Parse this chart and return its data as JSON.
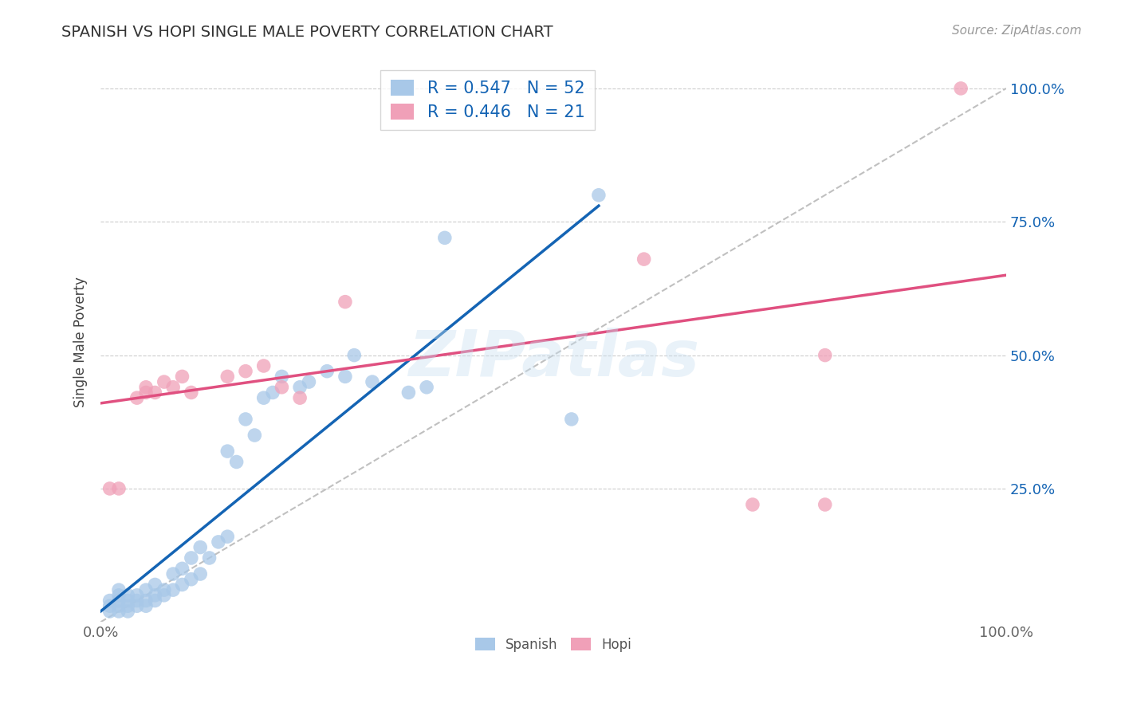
{
  "title": "SPANISH VS HOPI SINGLE MALE POVERTY CORRELATION CHART",
  "source": "Source: ZipAtlas.com",
  "ylabel": "Single Male Poverty",
  "xlim": [
    0.0,
    1.0
  ],
  "ylim": [
    0.0,
    1.05
  ],
  "ytick_positions": [
    0.25,
    0.5,
    0.75,
    1.0
  ],
  "ytick_labels": [
    "25.0%",
    "50.0%",
    "75.0%",
    "100.0%"
  ],
  "xtick_positions": [
    0.0,
    1.0
  ],
  "xtick_labels": [
    "0.0%",
    "100.0%"
  ],
  "spanish_R": 0.547,
  "spanish_N": 52,
  "hopi_R": 0.446,
  "hopi_N": 21,
  "spanish_color": "#a8c8e8",
  "hopi_color": "#f0a0b8",
  "spanish_line_color": "#1464b4",
  "hopi_line_color": "#e05080",
  "diagonal_color": "#c0c0c0",
  "watermark": "ZIPatlas",
  "spanish_line_x0": 0.0,
  "spanish_line_y0": 0.02,
  "spanish_line_x1": 0.55,
  "spanish_line_y1": 0.78,
  "hopi_line_x0": 0.0,
  "hopi_line_y0": 0.41,
  "hopi_line_x1": 1.0,
  "hopi_line_y1": 0.65,
  "spanish_x": [
    0.01,
    0.01,
    0.01,
    0.02,
    0.02,
    0.02,
    0.02,
    0.02,
    0.03,
    0.03,
    0.03,
    0.03,
    0.04,
    0.04,
    0.04,
    0.05,
    0.05,
    0.05,
    0.06,
    0.06,
    0.06,
    0.07,
    0.07,
    0.08,
    0.08,
    0.09,
    0.09,
    0.1,
    0.1,
    0.11,
    0.11,
    0.12,
    0.13,
    0.14,
    0.14,
    0.15,
    0.16,
    0.17,
    0.18,
    0.19,
    0.2,
    0.22,
    0.23,
    0.25,
    0.27,
    0.28,
    0.3,
    0.34,
    0.36,
    0.38,
    0.52,
    0.55
  ],
  "spanish_y": [
    0.02,
    0.03,
    0.04,
    0.02,
    0.03,
    0.04,
    0.05,
    0.06,
    0.02,
    0.03,
    0.04,
    0.05,
    0.03,
    0.04,
    0.05,
    0.03,
    0.04,
    0.06,
    0.04,
    0.05,
    0.07,
    0.05,
    0.06,
    0.06,
    0.09,
    0.07,
    0.1,
    0.08,
    0.12,
    0.09,
    0.14,
    0.12,
    0.15,
    0.16,
    0.32,
    0.3,
    0.38,
    0.35,
    0.42,
    0.43,
    0.46,
    0.44,
    0.45,
    0.47,
    0.46,
    0.5,
    0.45,
    0.43,
    0.44,
    0.72,
    0.38,
    0.8
  ],
  "hopi_x": [
    0.01,
    0.02,
    0.04,
    0.05,
    0.05,
    0.06,
    0.07,
    0.08,
    0.09,
    0.1,
    0.14,
    0.16,
    0.18,
    0.2,
    0.22,
    0.27,
    0.6,
    0.72,
    0.8,
    0.8,
    0.95
  ],
  "hopi_y": [
    0.25,
    0.25,
    0.42,
    0.43,
    0.44,
    0.43,
    0.45,
    0.44,
    0.46,
    0.43,
    0.46,
    0.47,
    0.48,
    0.44,
    0.42,
    0.6,
    0.68,
    0.22,
    0.22,
    0.5,
    1.0
  ],
  "background_color": "#ffffff",
  "grid_color": "#cccccc",
  "title_fontsize": 14,
  "label_fontsize": 12,
  "tick_fontsize": 13,
  "legend_fontsize": 15
}
